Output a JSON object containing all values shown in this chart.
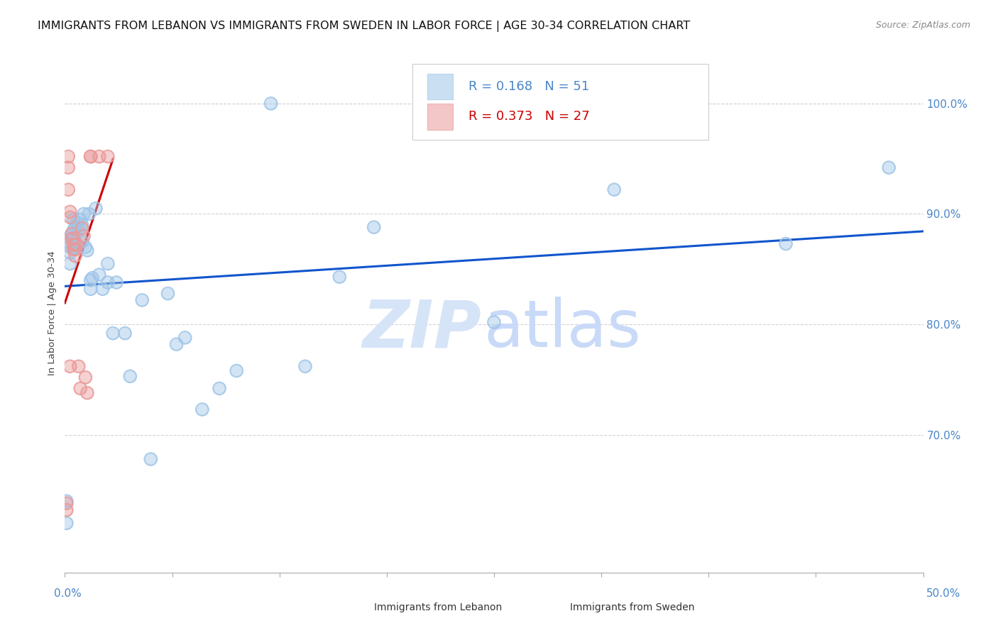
{
  "title": "IMMIGRANTS FROM LEBANON VS IMMIGRANTS FROM SWEDEN IN LABOR FORCE | AGE 30-34 CORRELATION CHART",
  "source": "Source: ZipAtlas.com",
  "ylabel": "In Labor Force | Age 30-34",
  "xlim": [
    0.0,
    0.5
  ],
  "ylim": [
    0.575,
    1.045
  ],
  "legend_blue_r": "R = 0.168",
  "legend_blue_n": "N = 51",
  "legend_pink_r": "R = 0.373",
  "legend_pink_n": "N = 27",
  "legend_label_blue": "Immigrants from Lebanon",
  "legend_label_pink": "Immigrants from Sweden",
  "blue_color": "#9fc5e8",
  "pink_color": "#ea9999",
  "blue_line_color": "#1155cc",
  "pink_line_color": "#cc0000",
  "axis_color": "#4a86c8",
  "grid_color": "#cccccc",
  "watermark_zip_color": "#d6e4f7",
  "watermark_atlas_color": "#c9daf8",
  "yticks_pos": [
    0.7,
    0.8,
    0.9,
    1.0
  ],
  "yticks_labels": [
    "70.0%",
    "80.0%",
    "90.0%",
    "100.0%"
  ],
  "blue_x": [
    0.001,
    0.001,
    0.002,
    0.003,
    0.003,
    0.004,
    0.004,
    0.005,
    0.005,
    0.006,
    0.006,
    0.006,
    0.007,
    0.008,
    0.009,
    0.01,
    0.01,
    0.011,
    0.012,
    0.013,
    0.014,
    0.015,
    0.016,
    0.018,
    0.02,
    0.022,
    0.025,
    0.028,
    0.03,
    0.035,
    0.038,
    0.045,
    0.05,
    0.06,
    0.065,
    0.07,
    0.08,
    0.09,
    0.1,
    0.12,
    0.14,
    0.16,
    0.18,
    0.25,
    0.32,
    0.42,
    0.48,
    0.025,
    0.005,
    0.003,
    0.015
  ],
  "blue_y": [
    0.62,
    0.64,
    0.875,
    0.87,
    0.865,
    0.878,
    0.882,
    0.885,
    0.87,
    0.88,
    0.87,
    0.888,
    0.892,
    0.887,
    0.895,
    0.875,
    0.89,
    0.9,
    0.87,
    0.867,
    0.9,
    0.84,
    0.842,
    0.905,
    0.845,
    0.832,
    0.855,
    0.792,
    0.838,
    0.792,
    0.753,
    0.822,
    0.678,
    0.828,
    0.782,
    0.788,
    0.723,
    0.742,
    0.758,
    1.0,
    0.762,
    0.843,
    0.888,
    0.802,
    0.922,
    0.873,
    0.942,
    0.838,
    0.895,
    0.855,
    0.832
  ],
  "pink_x": [
    0.001,
    0.001,
    0.002,
    0.002,
    0.003,
    0.003,
    0.004,
    0.004,
    0.005,
    0.005,
    0.006,
    0.006,
    0.007,
    0.008,
    0.009,
    0.01,
    0.011,
    0.012,
    0.013,
    0.015,
    0.015,
    0.02,
    0.025,
    0.003,
    0.005,
    0.006,
    0.002
  ],
  "pink_y": [
    0.632,
    0.638,
    0.922,
    0.942,
    0.897,
    0.902,
    0.877,
    0.882,
    0.872,
    0.878,
    0.872,
    0.862,
    0.872,
    0.762,
    0.742,
    0.887,
    0.88,
    0.752,
    0.738,
    0.952,
    0.952,
    0.952,
    0.952,
    0.762,
    0.868,
    0.868,
    0.952
  ],
  "title_fontsize": 11.5,
  "tick_fontsize": 11,
  "source_fontsize": 9
}
